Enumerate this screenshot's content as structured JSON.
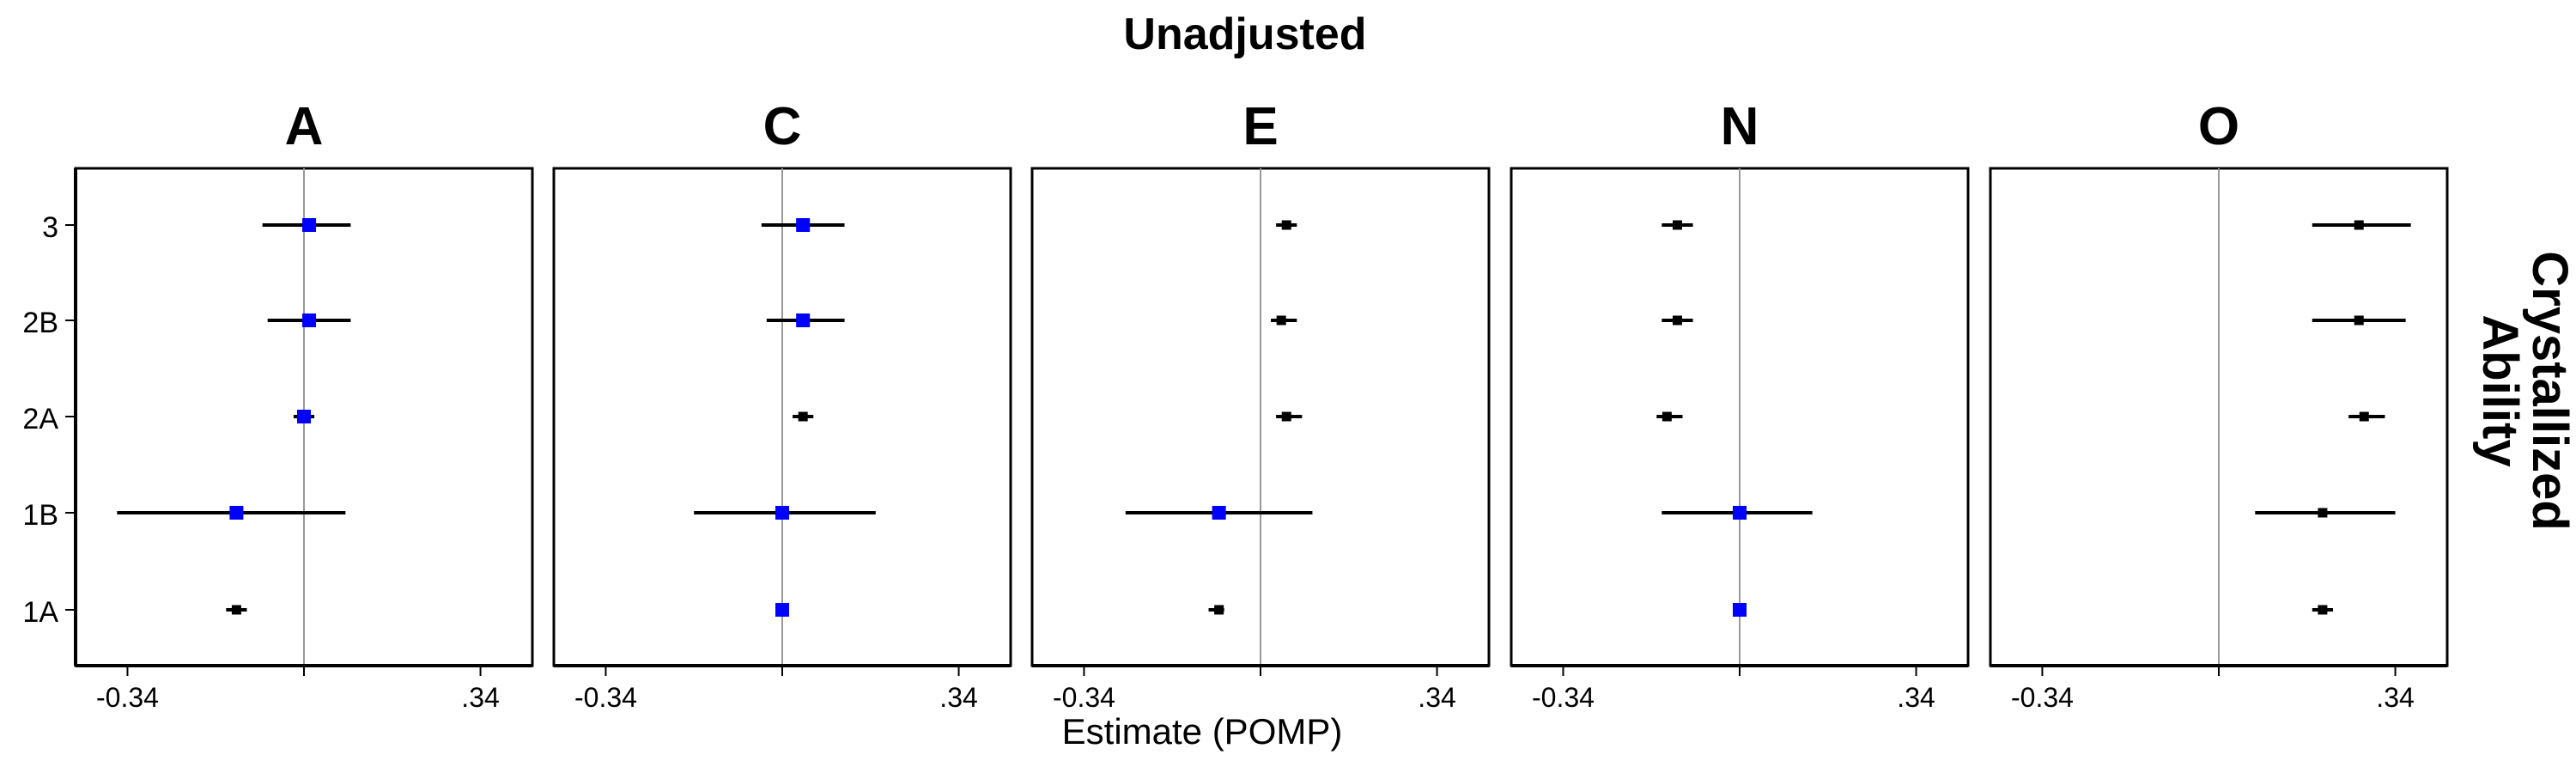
{
  "figure": {
    "title": "Unadjusted",
    "x_axis_title": "Estimate (POMP)",
    "row_strip_label": "Crystallized Ability"
  },
  "colors": {
    "highlight": "#0000ff",
    "default_point": "#000000",
    "zero_line": "#999999",
    "panel_border": "#000000"
  },
  "chart_data": {
    "type": "scatter",
    "subtype": "forest-plot (point estimate with horizontal interval), faceted",
    "facets": [
      "A",
      "C",
      "E",
      "N",
      "O"
    ],
    "y_categories": [
      "3",
      "2B",
      "2A",
      "1B",
      "1A"
    ],
    "x_ticks": [
      -0.34,
      0,
      0.34
    ],
    "x_tick_labels": [
      "-0.34",
      "",
      ".34"
    ],
    "xlim": [
      -0.44,
      0.44
    ],
    "reference_line": 0,
    "grid": false,
    "legend": "none",
    "panels": [
      {
        "facet": "A",
        "points": [
          {
            "y": "3",
            "estimate": 0.01,
            "low": -0.08,
            "high": 0.09,
            "highlight": true
          },
          {
            "y": "2B",
            "estimate": 0.01,
            "low": -0.07,
            "high": 0.09,
            "highlight": true
          },
          {
            "y": "2A",
            "estimate": 0.0,
            "low": -0.02,
            "high": 0.02,
            "highlight": true
          },
          {
            "y": "1B",
            "estimate": -0.13,
            "low": -0.36,
            "high": 0.08,
            "highlight": true
          },
          {
            "y": "1A",
            "estimate": -0.13,
            "low": -0.15,
            "high": -0.11,
            "highlight": false
          }
        ]
      },
      {
        "facet": "C",
        "points": [
          {
            "y": "3",
            "estimate": 0.04,
            "low": -0.04,
            "high": 0.12,
            "highlight": true
          },
          {
            "y": "2B",
            "estimate": 0.04,
            "low": -0.03,
            "high": 0.12,
            "highlight": true
          },
          {
            "y": "2A",
            "estimate": 0.04,
            "low": 0.02,
            "high": 0.06,
            "highlight": false
          },
          {
            "y": "1B",
            "estimate": 0.0,
            "low": -0.17,
            "high": 0.18,
            "highlight": true
          },
          {
            "y": "1A",
            "estimate": 0.0,
            "low": -0.01,
            "high": 0.01,
            "highlight": true
          }
        ]
      },
      {
        "facet": "E",
        "points": [
          {
            "y": "3",
            "estimate": 0.05,
            "low": 0.03,
            "high": 0.07,
            "highlight": false
          },
          {
            "y": "2B",
            "estimate": 0.04,
            "low": 0.02,
            "high": 0.07,
            "highlight": false
          },
          {
            "y": "2A",
            "estimate": 0.05,
            "low": 0.03,
            "high": 0.08,
            "highlight": false
          },
          {
            "y": "1B",
            "estimate": -0.08,
            "low": -0.26,
            "high": 0.1,
            "highlight": true
          },
          {
            "y": "1A",
            "estimate": -0.08,
            "low": -0.1,
            "high": -0.07,
            "highlight": false
          }
        ]
      },
      {
        "facet": "N",
        "points": [
          {
            "y": "3",
            "estimate": -0.12,
            "low": -0.15,
            "high": -0.09,
            "highlight": false
          },
          {
            "y": "2B",
            "estimate": -0.12,
            "low": -0.15,
            "high": -0.09,
            "highlight": false
          },
          {
            "y": "2A",
            "estimate": -0.14,
            "low": -0.16,
            "high": -0.11,
            "highlight": false
          },
          {
            "y": "1B",
            "estimate": 0.0,
            "low": -0.15,
            "high": 0.14,
            "highlight": true
          },
          {
            "y": "1A",
            "estimate": 0.0,
            "low": -0.01,
            "high": 0.01,
            "highlight": true
          }
        ]
      },
      {
        "facet": "O",
        "points": [
          {
            "y": "3",
            "estimate": 0.27,
            "low": 0.18,
            "high": 0.37,
            "highlight": false
          },
          {
            "y": "2B",
            "estimate": 0.27,
            "low": 0.18,
            "high": 0.36,
            "highlight": false
          },
          {
            "y": "2A",
            "estimate": 0.28,
            "low": 0.25,
            "high": 0.32,
            "highlight": false
          },
          {
            "y": "1B",
            "estimate": 0.2,
            "low": 0.07,
            "high": 0.34,
            "highlight": false
          },
          {
            "y": "1A",
            "estimate": 0.2,
            "low": 0.18,
            "high": 0.22,
            "highlight": false
          }
        ]
      }
    ]
  }
}
